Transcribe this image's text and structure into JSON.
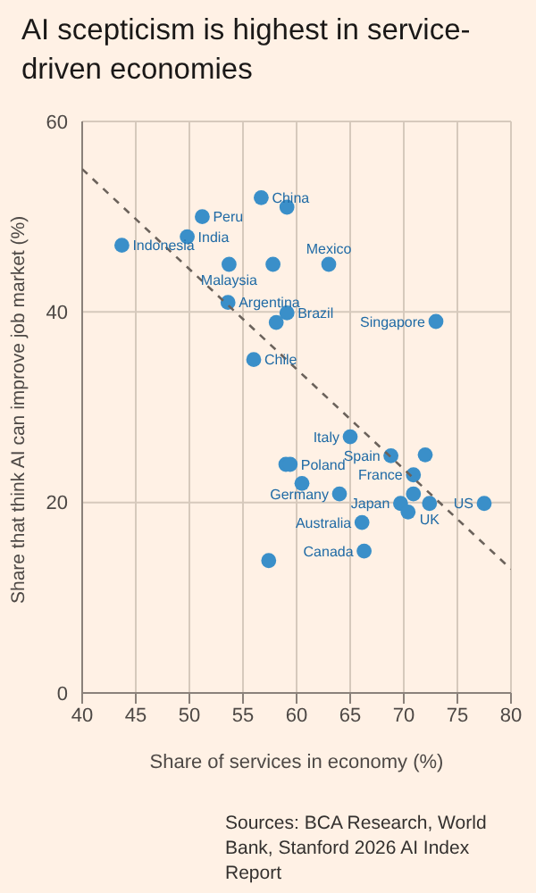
{
  "chart_data": {
    "type": "scatter",
    "title": "AI scepticism is highest in service-driven economies",
    "xlabel": "Share of services in economy (%)",
    "ylabel": "Share that think AI can improve job market (%)",
    "xlim": [
      40,
      80
    ],
    "xticks": [
      40,
      45,
      50,
      55,
      60,
      65,
      70,
      75,
      80
    ],
    "ylim": [
      0,
      60
    ],
    "yticks": [
      0,
      20,
      40,
      60
    ],
    "grid": true,
    "marker": "circle",
    "series": [
      {
        "color": "#3a8fc9",
        "x": [
          56.7,
          59.1,
          51.2,
          49.8,
          43.7,
          53.7,
          57.8,
          63.0,
          53.6,
          59.1,
          58.1,
          56.0,
          73.0,
          65.0,
          68.8,
          72.0,
          59.0,
          59.4,
          70.9,
          60.5,
          64.0,
          70.9,
          69.7,
          72.4,
          77.5,
          70.4,
          66.1,
          66.3,
          57.4
        ],
        "values": [
          52.0,
          51.0,
          50.0,
          47.9,
          47.0,
          45.0,
          45.0,
          45.0,
          41.0,
          39.9,
          38.9,
          35.0,
          39.0,
          26.9,
          24.9,
          25.0,
          24.0,
          24.0,
          22.9,
          22.0,
          20.9,
          20.9,
          19.9,
          19.9,
          19.9,
          19.0,
          17.9,
          14.9,
          13.9
        ]
      },
      {
        "type": "line",
        "color": "#6b625b",
        "line_style": "dashed",
        "marker": "none",
        "x": [
          40,
          80
        ],
        "values": [
          55,
          13
        ]
      }
    ],
    "annotations": [
      {
        "text": "China",
        "x": 56.7,
        "y": 52.0
      },
      {
        "text": "Peru",
        "x": 51.2,
        "y": 50.0
      },
      {
        "text": "India",
        "x": 49.8,
        "y": 47.9
      },
      {
        "text": "Indonesia",
        "x": 43.7,
        "y": 47.0
      },
      {
        "text": "Malaysia",
        "x": 53.7,
        "y": 45.0
      },
      {
        "text": "Mexico",
        "x": 63.0,
        "y": 45.0
      },
      {
        "text": "Argentina",
        "x": 53.6,
        "y": 41.0
      },
      {
        "text": "Brazil",
        "x": 59.1,
        "y": 39.9
      },
      {
        "text": "Chile",
        "x": 56.0,
        "y": 35.0
      },
      {
        "text": "Singapore",
        "x": 73.0,
        "y": 39.0
      },
      {
        "text": "Italy",
        "x": 65.0,
        "y": 26.9
      },
      {
        "text": "Spain",
        "x": 68.8,
        "y": 24.9
      },
      {
        "text": "Poland",
        "x": 59.4,
        "y": 24.0
      },
      {
        "text": "France",
        "x": 70.9,
        "y": 22.9
      },
      {
        "text": "Germany",
        "x": 64.0,
        "y": 20.9
      },
      {
        "text": "Japan",
        "x": 69.7,
        "y": 19.9
      },
      {
        "text": "UK",
        "x": 72.4,
        "y": 19.9
      },
      {
        "text": "US",
        "x": 77.5,
        "y": 19.9
      },
      {
        "text": "Australia",
        "x": 66.1,
        "y": 17.9
      },
      {
        "text": "Canada",
        "x": 66.3,
        "y": 14.9
      },
      "Sources: BCA Research, World Bank, Stanford 2026 AI Index Report"
    ]
  }
}
